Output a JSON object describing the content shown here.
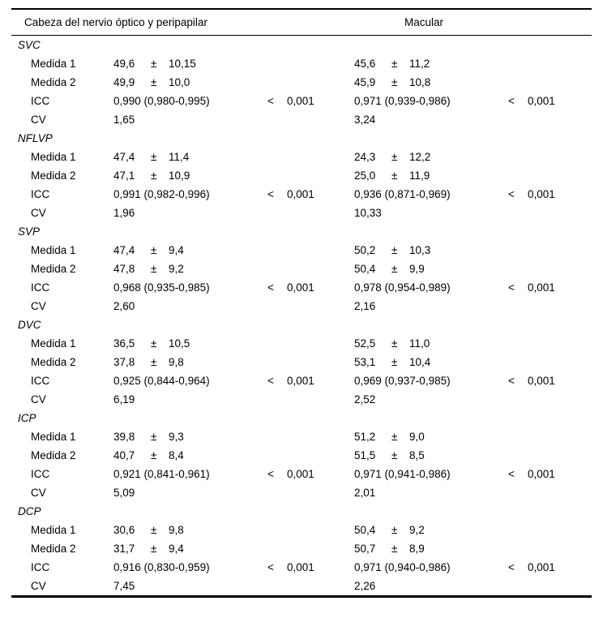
{
  "table": {
    "header": {
      "left": "Cabeza del nervio óptico y peripapilar",
      "right": "Macular"
    },
    "plus_minus": "±",
    "sections": [
      {
        "name": "SVC",
        "rows": [
          {
            "type": "measure",
            "label": "Medida 1",
            "onh": {
              "mean": "49,6",
              "sd": "10,15"
            },
            "macular": {
              "mean": "45,6",
              "sd": "11,2"
            }
          },
          {
            "type": "measure",
            "label": "Medida 2",
            "onh": {
              "mean": "49,9",
              "sd": "10,0"
            },
            "macular": {
              "mean": "45,9",
              "sd": "10,8"
            }
          },
          {
            "type": "icc",
            "label": "ICC",
            "onh": {
              "value": "0,990 (0,980-0,995)",
              "p_sign": "<",
              "p": "0,001"
            },
            "macular": {
              "value": "0,971 (0,939-0,986)",
              "p_sign": "<",
              "p": "0,001"
            }
          },
          {
            "type": "cv",
            "label": "CV",
            "onh": {
              "value": "1,65"
            },
            "macular": {
              "value": "3,24"
            }
          }
        ]
      },
      {
        "name": "NFLVP",
        "rows": [
          {
            "type": "measure",
            "label": "Medida 1",
            "onh": {
              "mean": "47,4",
              "sd": "11,4"
            },
            "macular": {
              "mean": "24,3",
              "sd": "12,2"
            }
          },
          {
            "type": "measure",
            "label": "Medida 2",
            "onh": {
              "mean": "47,1",
              "sd": "10,9"
            },
            "macular": {
              "mean": "25,0",
              "sd": "11,9"
            }
          },
          {
            "type": "icc",
            "label": "ICC",
            "onh": {
              "value": "0,991 (0,982-0,996)",
              "p_sign": "<",
              "p": "0,001"
            },
            "macular": {
              "value": "0,936 (0,871-0,969)",
              "p_sign": "<",
              "p": "0,001"
            }
          },
          {
            "type": "cv",
            "label": "CV",
            "onh": {
              "value": "1,96"
            },
            "macular": {
              "value": "10,33"
            }
          }
        ]
      },
      {
        "name": "SVP",
        "rows": [
          {
            "type": "measure",
            "label": "Medida 1",
            "onh": {
              "mean": "47,4",
              "sd": "9,4"
            },
            "macular": {
              "mean": "50,2",
              "sd": "10,3"
            }
          },
          {
            "type": "measure",
            "label": "Medida 2",
            "onh": {
              "mean": "47,8",
              "sd": "9,2"
            },
            "macular": {
              "mean": "50,4",
              "sd": "9,9"
            }
          },
          {
            "type": "icc",
            "label": "ICC",
            "onh": {
              "value": "0,968 (0,935-0,985)",
              "p_sign": "<",
              "p": "0,001"
            },
            "macular": {
              "value": "0,978 (0,954-0,989)",
              "p_sign": "<",
              "p": "0,001"
            }
          },
          {
            "type": "cv",
            "label": "CV",
            "onh": {
              "value": "2,60"
            },
            "macular": {
              "value": "2,16"
            }
          }
        ]
      },
      {
        "name": "DVC",
        "rows": [
          {
            "type": "measure",
            "label": "Medida 1",
            "onh": {
              "mean": "36,5",
              "sd": "10,5"
            },
            "macular": {
              "mean": "52,5",
              "sd": "11,0"
            }
          },
          {
            "type": "measure",
            "label": "Medida 2",
            "onh": {
              "mean": "37,8",
              "sd": "9,8"
            },
            "macular": {
              "mean": "53,1",
              "sd": "10,4"
            }
          },
          {
            "type": "icc",
            "label": "ICC",
            "onh": {
              "value": "0,925 (0,844-0,964)",
              "p_sign": "<",
              "p": "0,001"
            },
            "macular": {
              "value": "0,969 (0,937-0,985)",
              "p_sign": "<",
              "p": "0,001"
            }
          },
          {
            "type": "cv",
            "label": "CV",
            "onh": {
              "value": "6,19"
            },
            "macular": {
              "value": "2,52"
            }
          }
        ]
      },
      {
        "name": "ICP",
        "rows": [
          {
            "type": "measure",
            "label": "Medida 1",
            "onh": {
              "mean": "39,8",
              "sd": "9,3"
            },
            "macular": {
              "mean": "51,2",
              "sd": "9,0"
            }
          },
          {
            "type": "measure",
            "label": "Medida 2",
            "onh": {
              "mean": "40,7",
              "sd": "8,4"
            },
            "macular": {
              "mean": "51,5",
              "sd": "8,5"
            }
          },
          {
            "type": "icc",
            "label": "ICC",
            "onh": {
              "value": "0,921 (0,841-0,961)",
              "p_sign": "<",
              "p": "0,001"
            },
            "macular": {
              "value": "0,971 (0,941-0,986)",
              "p_sign": "<",
              "p": "0,001"
            }
          },
          {
            "type": "cv",
            "label": "CV",
            "onh": {
              "value": "5,09"
            },
            "macular": {
              "value": "2,01"
            }
          }
        ]
      },
      {
        "name": "DCP",
        "rows": [
          {
            "type": "measure",
            "label": "Medida 1",
            "onh": {
              "mean": "30,6",
              "sd": "9,8"
            },
            "macular": {
              "mean": "50,4",
              "sd": "9,2"
            }
          },
          {
            "type": "measure",
            "label": "Medida 2",
            "onh": {
              "mean": "31,7",
              "sd": "9,4"
            },
            "macular": {
              "mean": "50,7",
              "sd": "8,9"
            }
          },
          {
            "type": "icc",
            "label": "ICC",
            "onh": {
              "value": "0,916 (0,830-0,959)",
              "p_sign": "<",
              "p": "0,001"
            },
            "macular": {
              "value": "0,971 (0,940-0,986)",
              "p_sign": "<",
              "p": "0,001"
            }
          },
          {
            "type": "cv",
            "label": "CV",
            "onh": {
              "value": "7,45"
            },
            "macular": {
              "value": "2,26"
            }
          }
        ]
      }
    ]
  }
}
